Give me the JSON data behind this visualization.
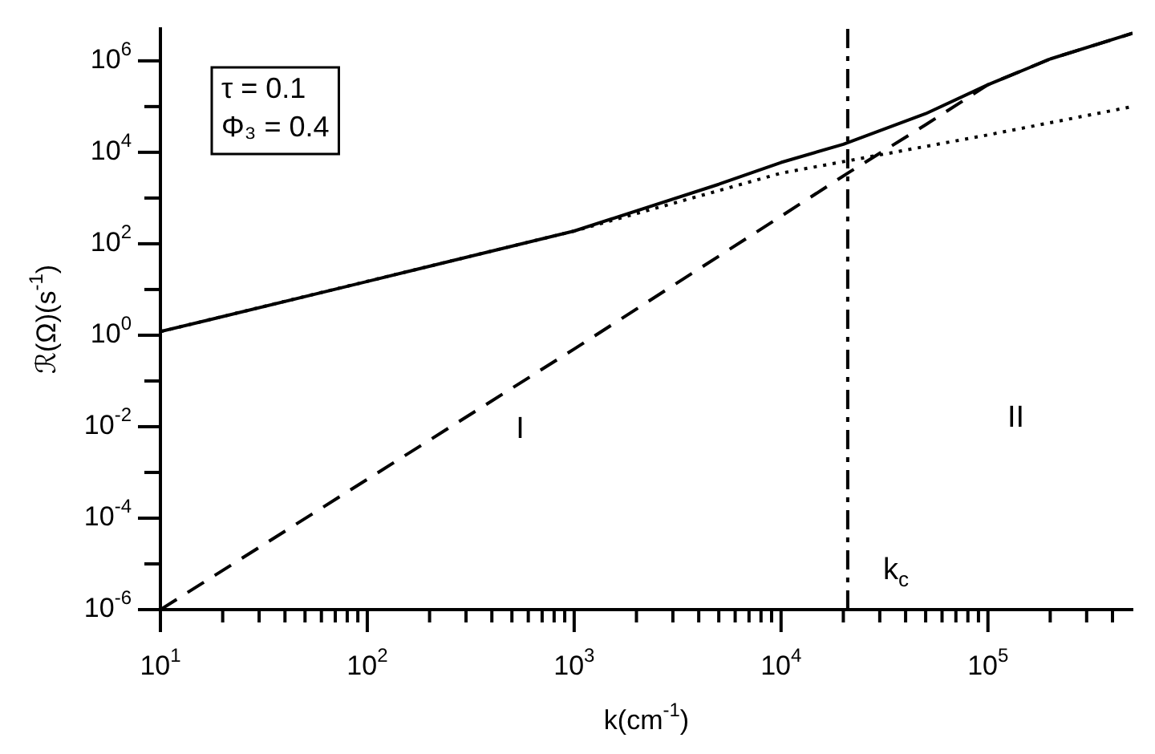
{
  "chart_data": {
    "type": "line",
    "xlabel": "k(cm$^{-1}$)",
    "ylabel": "ℛ(Ω)(s$^{-1}$)",
    "log": "xy",
    "grid": false,
    "legend": false,
    "marker": "none",
    "xlim": [
      10,
      500000
    ],
    "ylim": [
      1e-06,
      5000000
    ],
    "xticks": [
      {
        "value": 10,
        "label": "10$^{1}$"
      },
      {
        "value": 20,
        "label": null
      },
      {
        "value": 30,
        "label": null
      },
      {
        "value": 40,
        "label": null
      },
      {
        "value": 50,
        "label": null
      },
      {
        "value": 60,
        "label": null
      },
      {
        "value": 70,
        "label": null
      },
      {
        "value": 80,
        "label": null
      },
      {
        "value": 90,
        "label": null
      },
      {
        "value": 100,
        "label": "10$^{2}$"
      },
      {
        "value": 200,
        "label": null
      },
      {
        "value": 300,
        "label": null
      },
      {
        "value": 400,
        "label": null
      },
      {
        "value": 500,
        "label": null
      },
      {
        "value": 600,
        "label": null
      },
      {
        "value": 700,
        "label": null
      },
      {
        "value": 800,
        "label": null
      },
      {
        "value": 900,
        "label": null
      },
      {
        "value": 1000,
        "label": "10$^{3}$"
      },
      {
        "value": 2000,
        "label": null
      },
      {
        "value": 3000,
        "label": null
      },
      {
        "value": 4000,
        "label": null
      },
      {
        "value": 5000,
        "label": null
      },
      {
        "value": 6000,
        "label": null
      },
      {
        "value": 7000,
        "label": null
      },
      {
        "value": 8000,
        "label": null
      },
      {
        "value": 9000,
        "label": null
      },
      {
        "value": 10000,
        "label": "10$^{4}$"
      },
      {
        "value": 20000,
        "label": null
      },
      {
        "value": 30000,
        "label": null
      },
      {
        "value": 40000,
        "label": null
      },
      {
        "value": 50000,
        "label": null
      },
      {
        "value": 60000,
        "label": null
      },
      {
        "value": 70000,
        "label": null
      },
      {
        "value": 80000,
        "label": null
      },
      {
        "value": 90000,
        "label": null
      },
      {
        "value": 100000,
        "label": "10$^{5}$"
      },
      {
        "value": 200000,
        "label": null
      },
      {
        "value": 300000,
        "label": null
      },
      {
        "value": 400000,
        "label": null
      }
    ],
    "yticks": [
      {
        "value": 1e-06,
        "label": "10$^{-6}$"
      },
      {
        "value": 1e-05,
        "label": null
      },
      {
        "value": 0.0001,
        "label": "10$^{-4}$"
      },
      {
        "value": 0.001,
        "label": null
      },
      {
        "value": 0.01,
        "label": "10$^{-2}$"
      },
      {
        "value": 0.1,
        "label": null
      },
      {
        "value": 1,
        "label": "10$^{0}$"
      },
      {
        "value": 10,
        "label": null
      },
      {
        "value": 100,
        "label": "10$^{2}$"
      },
      {
        "value": 1000,
        "label": null
      },
      {
        "value": 10000,
        "label": "10$^{4}$"
      },
      {
        "value": 100000,
        "label": null
      },
      {
        "value": 1000000,
        "label": "10$^{6}$"
      }
    ],
    "series": [
      {
        "color": "#000000",
        "line_style": "solid",
        "x": [
          10,
          100,
          1000,
          5000,
          10000,
          20000,
          50000,
          100000,
          200000,
          500000
        ],
        "values": [
          1.2,
          15,
          190,
          2000,
          6000,
          15000,
          70000,
          300000,
          1100000,
          4000000
        ]
      },
      {
        "color": "#000000",
        "line_style": "dotted",
        "x": [
          10,
          1000,
          10000,
          100000,
          500000
        ],
        "values": [
          1.2,
          190,
          3500,
          24000,
          100000
        ]
      },
      {
        "color": "#000000",
        "line_style": "dashed",
        "x": [
          10,
          1000,
          10000,
          21000,
          50000,
          100000,
          200000,
          500000
        ],
        "values": [
          1e-06,
          0.5,
          400,
          3500,
          40000,
          300000,
          1100000,
          4000000
        ]
      }
    ],
    "ref_lines": [
      {
        "axis": "x",
        "value": 21000,
        "label": "k$_{c}$"
      }
    ],
    "annotations": [
      "τ = 0.1",
      "Φ₃ = 0.4",
      "I",
      "II"
    ]
  }
}
